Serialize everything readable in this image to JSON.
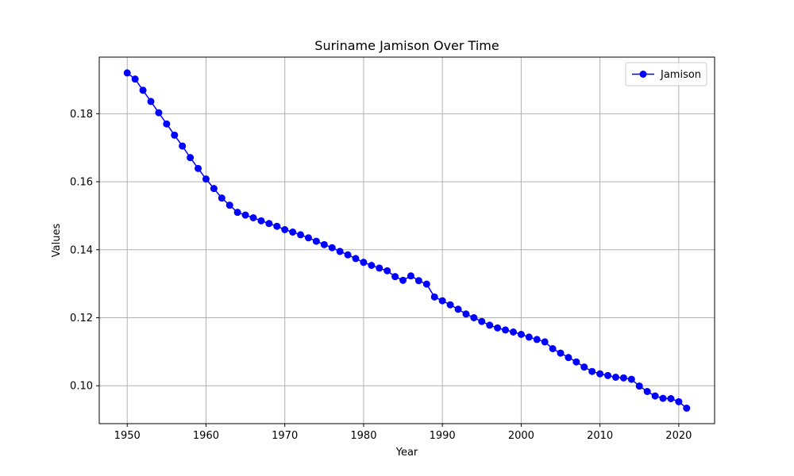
{
  "chart_data": {
    "type": "line",
    "title": "Suriname Jamison Over Time",
    "xlabel": "Year",
    "ylabel": "Values",
    "xlim": [
      1946.45,
      2024.55
    ],
    "ylim": [
      0.08885,
      0.19665
    ],
    "xticks": [
      1950,
      1960,
      1970,
      1980,
      1990,
      2000,
      2010,
      2020
    ],
    "xtick_labels": [
      "1950",
      "1960",
      "1970",
      "1980",
      "1990",
      "2000",
      "2010",
      "2020"
    ],
    "yticks": [
      0.1,
      0.12,
      0.14,
      0.16,
      0.18
    ],
    "ytick_labels": [
      "0.10",
      "0.12",
      "0.14",
      "0.16",
      "0.18"
    ],
    "grid": true,
    "legend_position": "top-right",
    "series": [
      {
        "name": "Jamison",
        "color": "#0000ff",
        "marker": "circle",
        "x": [
          1950,
          1951,
          1952,
          1953,
          1954,
          1955,
          1956,
          1957,
          1958,
          1959,
          1960,
          1961,
          1962,
          1963,
          1964,
          1965,
          1966,
          1967,
          1968,
          1969,
          1970,
          1971,
          1972,
          1973,
          1974,
          1975,
          1976,
          1977,
          1978,
          1979,
          1980,
          1981,
          1982,
          1983,
          1984,
          1985,
          1986,
          1987,
          1988,
          1989,
          1990,
          1991,
          1992,
          1993,
          1994,
          1995,
          1996,
          1997,
          1998,
          1999,
          2000,
          2001,
          2002,
          2003,
          2004,
          2005,
          2006,
          2007,
          2008,
          2009,
          2010,
          2011,
          2012,
          2013,
          2014,
          2015,
          2016,
          2017,
          2018,
          2019,
          2020,
          2021
        ],
        "y": [
          0.192,
          0.1902,
          0.1869,
          0.1836,
          0.1803,
          0.177,
          0.1737,
          0.1705,
          0.1671,
          0.1639,
          0.1608,
          0.158,
          0.1552,
          0.1531,
          0.151,
          0.1502,
          0.1494,
          0.1485,
          0.1477,
          0.1469,
          0.1459,
          0.1452,
          0.1444,
          0.1435,
          0.1425,
          0.1415,
          0.1406,
          0.1395,
          0.1385,
          0.1374,
          0.1363,
          0.1354,
          0.1346,
          0.1338,
          0.1321,
          0.131,
          0.1323,
          0.1309,
          0.1299,
          0.1261,
          0.125,
          0.1238,
          0.1225,
          0.1211,
          0.12,
          0.1189,
          0.1178,
          0.117,
          0.1164,
          0.1158,
          0.1151,
          0.1143,
          0.1136,
          0.1129,
          0.1109,
          0.1096,
          0.1083,
          0.107,
          0.1055,
          0.1042,
          0.1035,
          0.103,
          0.1025,
          0.1023,
          0.1019,
          0.0999,
          0.0983,
          0.097,
          0.0963,
          0.0962,
          0.0953,
          0.0934
        ]
      }
    ]
  }
}
